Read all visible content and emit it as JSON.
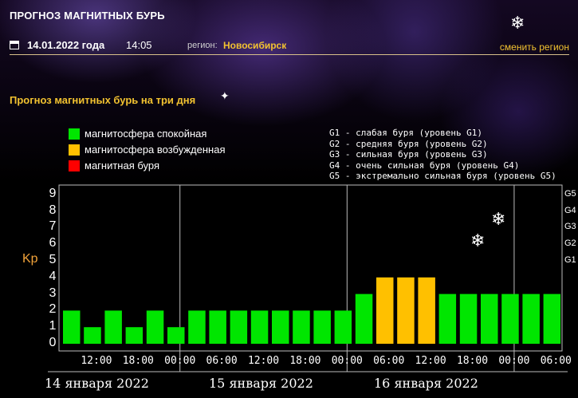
{
  "header": {
    "site_title": "ПРОГНОЗ МАГНИТНЫХ БУРЬ",
    "date": "14.01.2022 года",
    "time": "14:05",
    "region_label": "регион:",
    "region_value": "Новосибирск",
    "change_region": "сменить регион"
  },
  "section_title": "Прогноз магнитных бурь на три дня",
  "legend": [
    {
      "label": "магнитосфера спокойная",
      "color": "#00e600"
    },
    {
      "label": "магнитосфера возбужденная",
      "color": "#ffc000"
    },
    {
      "label": "магнитная буря",
      "color": "#ff0000"
    }
  ],
  "storm_levels": [
    "G1 - слабая буря (уровень G1)",
    "G2 - средняя буря (уровень G2)",
    "G3 - сильная буря (уровень G3)",
    "G4 - очень сильная буря (уровень G4)",
    "G5 - экстремально сильная буря (уровень G5)"
  ],
  "chart_data": {
    "type": "bar",
    "ylabel": "Kp",
    "ylim": [
      0,
      9
    ],
    "yticks": [
      "0",
      "1",
      "2",
      "3",
      "4",
      "5",
      "6",
      "7",
      "8",
      "9"
    ],
    "g_ticks": [
      "G1",
      "G2",
      "G3",
      "G4",
      "G5"
    ],
    "x_tick_labels": [
      "12:00",
      "18:00",
      "00:00",
      "06:00",
      "12:00",
      "18:00",
      "00:00",
      "06:00",
      "12:00",
      "18:00",
      "00:00",
      "06:00"
    ],
    "day_labels": [
      "14 января 2022",
      "15 января 2022",
      "16 января 2022"
    ],
    "values": [
      2,
      1,
      2,
      1,
      2,
      1,
      2,
      2,
      2,
      2,
      2,
      2,
      2,
      2,
      3,
      4,
      4,
      4,
      3,
      3,
      3,
      3,
      3,
      3
    ],
    "bar_colors": [
      "#00e600",
      "#00e600",
      "#00e600",
      "#00e600",
      "#00e600",
      "#00e600",
      "#00e600",
      "#00e600",
      "#00e600",
      "#00e600",
      "#00e600",
      "#00e600",
      "#00e600",
      "#00e600",
      "#00e600",
      "#ffc000",
      "#ffc000",
      "#ffc000",
      "#00e600",
      "#00e600",
      "#00e600",
      "#00e600",
      "#00e600",
      "#00e600"
    ],
    "grid": true
  }
}
